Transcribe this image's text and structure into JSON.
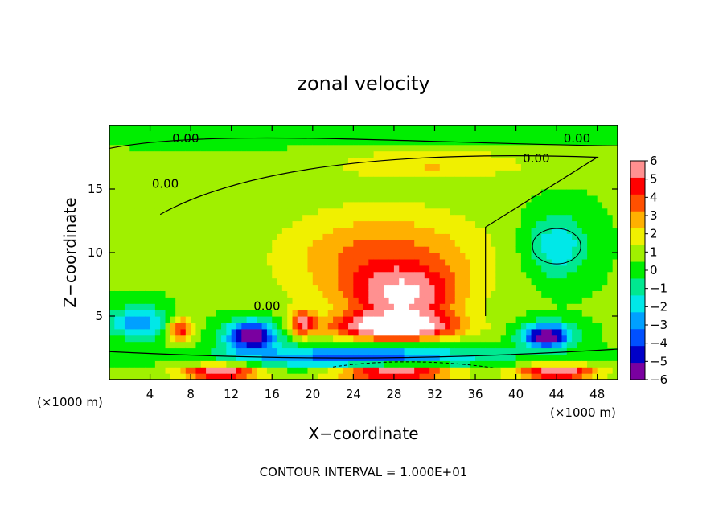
{
  "chart_data": {
    "type": "heatmap",
    "title": "zonal velocity",
    "xlabel": "X−coordinate",
    "ylabel": "Z−coordinate",
    "x_unit": "(×1000 m)",
    "xlim": [
      0,
      50
    ],
    "ylim": [
      0,
      20
    ],
    "x_ticks": [
      4,
      8,
      12,
      16,
      20,
      24,
      28,
      32,
      36,
      40,
      44,
      48
    ],
    "x_tick_labels": [
      "4",
      "8",
      "12",
      "16",
      "20",
      "24",
      "28",
      "32",
      "36",
      "40",
      "44",
      "48"
    ],
    "y_ticks": [
      5,
      10,
      15
    ],
    "y_tick_labels": [
      "5",
      "10",
      "15"
    ],
    "colorbar": {
      "min": -6,
      "max": 6,
      "ticks": [
        6,
        5,
        4,
        3,
        2,
        1,
        0,
        -1,
        -2,
        -3,
        -4,
        -5,
        -6
      ],
      "tick_labels": [
        "6",
        "5",
        "4",
        "3",
        "2",
        "1",
        "0",
        "−1",
        "−2",
        "−3",
        "−4",
        "−5",
        "−6"
      ],
      "colors": [
        "#7a00a0",
        "#0000c8",
        "#0050ff",
        "#00a0ff",
        "#00e8e8",
        "#00e890",
        "#00ee00",
        "#a0f000",
        "#f0f000",
        "#ffb000",
        "#ff5000",
        "#ff0000",
        "#ff9090"
      ]
    },
    "background_value": 0.5,
    "features": [
      {
        "x": 27,
        "z": 9.5,
        "rx": 10,
        "rz": 4,
        "value": 3.2
      },
      {
        "x": 29,
        "z": 6.5,
        "rx": 5,
        "rz": 2.2,
        "value": 4.5
      },
      {
        "x": 28,
        "z": 4.2,
        "rx": 6,
        "rz": 1.0,
        "value": 6.5
      },
      {
        "x": 44,
        "z": 10.5,
        "rx": 3,
        "rz": 2.5,
        "value": -2.8
      },
      {
        "x": 43,
        "z": 3.5,
        "rx": 2.5,
        "rz": 1.0,
        "value": -6.5
      },
      {
        "x": 14,
        "z": 3.5,
        "rx": 2.5,
        "rz": 1.2,
        "value": -6.5
      },
      {
        "x": 3,
        "z": 4.5,
        "rx": 3,
        "rz": 1.2,
        "value": -3.5
      },
      {
        "x": 7,
        "z": 4.0,
        "rx": 1.2,
        "rz": 1.0,
        "value": 4.5
      },
      {
        "x": 19,
        "z": 4.5,
        "rx": 1.2,
        "rz": 1.0,
        "value": 4.2
      },
      {
        "x": 25,
        "z": 1.8,
        "rx": 12,
        "rz": 0.9,
        "value": -4.5
      },
      {
        "x": 28,
        "z": 0.6,
        "rx": 6,
        "rz": 0.6,
        "value": 6.5
      },
      {
        "x": 11,
        "z": 0.6,
        "rx": 4,
        "rz": 0.6,
        "value": 6.0
      },
      {
        "x": 44,
        "z": 0.6,
        "rx": 4,
        "rz": 0.6,
        "value": 6.0
      },
      {
        "x": 25,
        "z": 19.3,
        "rx": 20,
        "rz": 0.8,
        "value": -0.8
      },
      {
        "x": 32,
        "z": 17,
        "rx": 10,
        "rz": 1.2,
        "value": 1.8
      }
    ],
    "contour_labels": [
      {
        "text": "0.00",
        "x": 7.5,
        "z": 19.0
      },
      {
        "text": "0.00",
        "x": 46,
        "z": 19.0
      },
      {
        "text": "0.00",
        "x": 42,
        "z": 17.4
      },
      {
        "text": "0.00",
        "x": 5.5,
        "z": 15.4
      },
      {
        "text": "0.00",
        "x": 15.5,
        "z": 5.8
      }
    ]
  },
  "footer": "CONTOUR INTERVAL = 1.000E+01"
}
